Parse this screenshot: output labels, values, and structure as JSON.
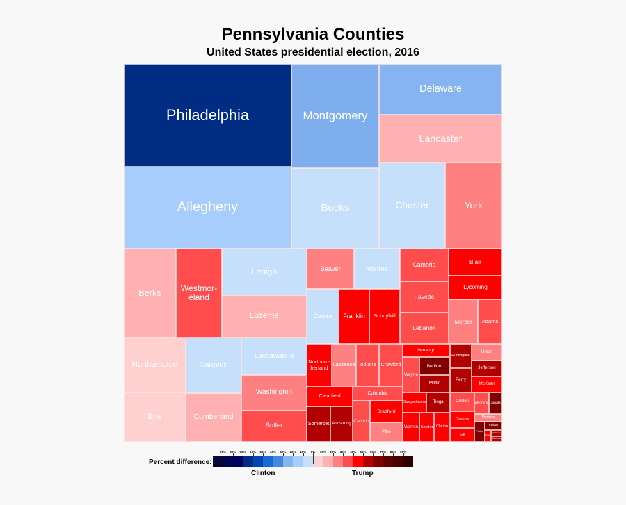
{
  "chart_data": {
    "type": "treemap",
    "title": "Pennsylvania Counties",
    "subtitle": "United States presidential election, 2016",
    "counties": [
      {
        "name": "Philadelphia",
        "color": "#002d84"
      },
      {
        "name": "Allegheny",
        "color": "#a6cdfb"
      },
      {
        "name": "Montgomery",
        "color": "#7eaeee"
      },
      {
        "name": "Bucks",
        "color": "#c6e0fc"
      },
      {
        "name": "Delaware",
        "color": "#86b4f0"
      },
      {
        "name": "Lancaster",
        "color": "#ffb0b0"
      },
      {
        "name": "Chester",
        "color": "#c6e0fc"
      },
      {
        "name": "York",
        "color": "#ff8080"
      },
      {
        "name": "Berks",
        "color": "#ffb0b0"
      },
      {
        "name": "Westmor-\neland",
        "color": "#ff4c4c"
      },
      {
        "name": "Lehigh",
        "color": "#c6e0fc"
      },
      {
        "name": "Luzerne",
        "color": "#ffb0b0"
      },
      {
        "name": "Beaver",
        "color": "#ff8080"
      },
      {
        "name": "Monroe",
        "color": "#c6e0fc"
      },
      {
        "name": "Centre",
        "color": "#c6e0fc"
      },
      {
        "name": "Franklin",
        "color": "#ff0000"
      },
      {
        "name": "Schuylkill",
        "color": "#ff0000"
      },
      {
        "name": "Cambria",
        "color": "#ff4c4c"
      },
      {
        "name": "Fayette",
        "color": "#ff4c4c"
      },
      {
        "name": "Lebanon",
        "color": "#ff4c4c"
      },
      {
        "name": "Blair",
        "color": "#ff0000"
      },
      {
        "name": "Lycoming",
        "color": "#ff0000"
      },
      {
        "name": "Mercer",
        "color": "#ff8080"
      },
      {
        "name": "Adams",
        "color": "#ff4c4c"
      },
      {
        "name": "Northampton",
        "color": "#ffd0d0"
      },
      {
        "name": "Erie",
        "color": "#ffd0d0"
      },
      {
        "name": "Dauphin",
        "color": "#c6e0fc"
      },
      {
        "name": "Cumberland",
        "color": "#ffb0b0"
      },
      {
        "name": "Lackawanna",
        "color": "#c6e0fc"
      },
      {
        "name": "Washington",
        "color": "#ff8080"
      },
      {
        "name": "Butler",
        "color": "#ff4c4c"
      },
      {
        "name": "Northum-\nberland",
        "color": "#ff0000"
      },
      {
        "name": "Lawrence",
        "color": "#ff8080"
      },
      {
        "name": "Indiana",
        "color": "#ff4c4c"
      },
      {
        "name": "Crawford",
        "color": "#ff4c4c"
      },
      {
        "name": "Clearfield",
        "color": "#ff0000"
      },
      {
        "name": "Somerset",
        "color": "#b00000"
      },
      {
        "name": "Armstrong",
        "color": "#b00000"
      },
      {
        "name": "Columbia",
        "color": "#ff4c4c"
      },
      {
        "name": "Carbon",
        "color": "#ff4c4c"
      },
      {
        "name": "Bradford",
        "color": "#ff0000"
      },
      {
        "name": "Pike",
        "color": "#ff8080"
      },
      {
        "name": "Venango",
        "color": "#ff0000"
      },
      {
        "name": "Wayne",
        "color": "#ff4c4c"
      },
      {
        "name": "Bedford",
        "color": "#800000"
      },
      {
        "name": "Mifflin",
        "color": "#b00000"
      },
      {
        "name": "Huntingdon",
        "color": "#b00000"
      },
      {
        "name": "Perry",
        "color": "#b00000"
      },
      {
        "name": "Union",
        "color": "#ff8080"
      },
      {
        "name": "Jefferson",
        "color": "#b00000"
      },
      {
        "name": "McKean",
        "color": "#ff0000"
      },
      {
        "name": "Susquehanna",
        "color": "#ff0000"
      },
      {
        "name": "Tioga",
        "color": "#b00000"
      },
      {
        "name": "Warren",
        "color": "#ff0000"
      },
      {
        "name": "Snyder",
        "color": "#ff0000"
      },
      {
        "name": "Clarion",
        "color": "#ff0000"
      },
      {
        "name": "Clinton",
        "color": "#ff4c4c"
      },
      {
        "name": "Greene",
        "color": "#ff0000"
      },
      {
        "name": "Elk",
        "color": "#ff0000"
      },
      {
        "name": "Wyoming",
        "color": "#ff4c4c"
      },
      {
        "name": "Juniata",
        "color": "#800000"
      },
      {
        "name": "Montour",
        "color": "#ff8080"
      },
      {
        "name": "Potter",
        "color": "#800000"
      },
      {
        "name": "Fulton",
        "color": "#800000"
      },
      {
        "name": "Forest",
        "color": "#ff0000"
      },
      {
        "name": "Sullivan",
        "color": "#b00000"
      },
      {
        "name": "Cameron",
        "color": "#b00000"
      }
    ],
    "legend": {
      "label": "Percent difference:",
      "left_side": "Clinton",
      "right_side": "Trump",
      "ticks": [
        "90%",
        "80%",
        "70%",
        "60%",
        "50%",
        "40%",
        "30%",
        "20%",
        "10%",
        "0%",
        "10%",
        "20%",
        "30%",
        "40%",
        "50%",
        "60%",
        "70%",
        "80%",
        "90%"
      ],
      "colors": [
        "#06063a",
        "#05054e",
        "#00005e",
        "#002d84",
        "#0645b4",
        "#1a6ad0",
        "#4389e0",
        "#86b4f0",
        "#a6cdfb",
        "#c6e0fc",
        "#ffd0d0",
        "#ffb0b0",
        "#ff8080",
        "#ff4c4c",
        "#ff0000",
        "#b00000",
        "#800000",
        "#600000",
        "#4a0000",
        "#300000"
      ]
    }
  }
}
